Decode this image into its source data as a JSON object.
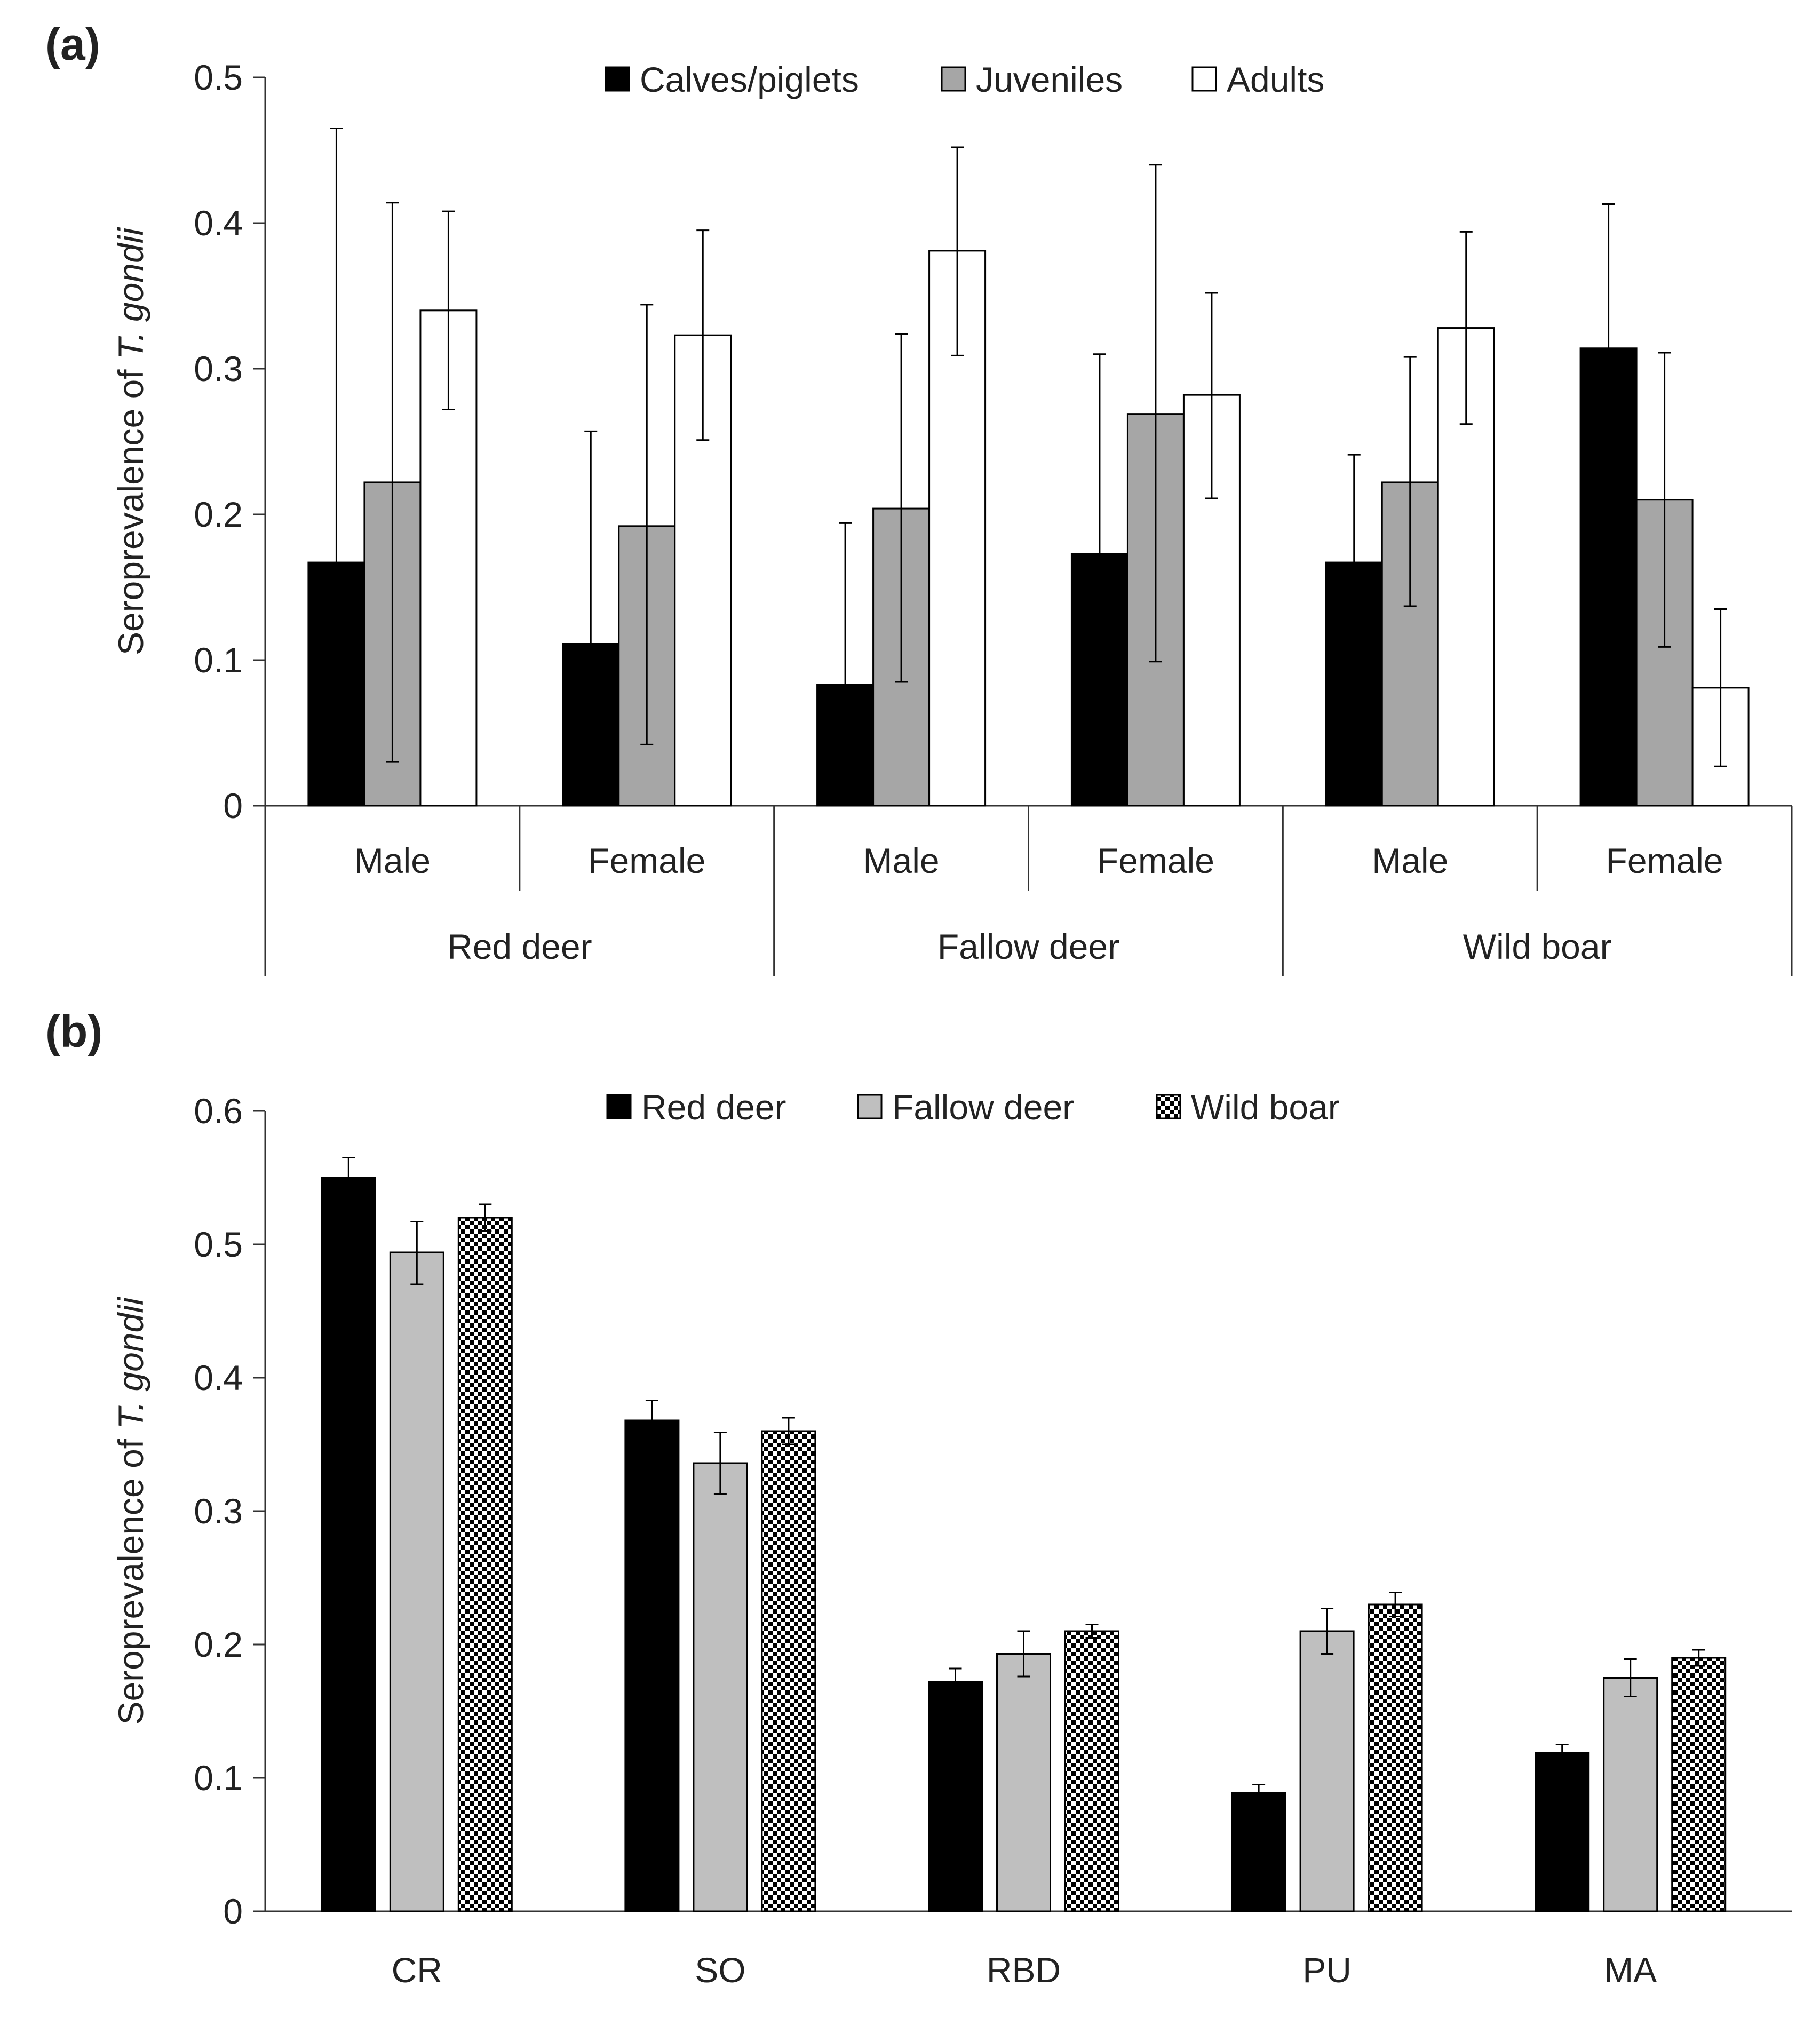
{
  "chart_data": [
    {
      "panel_label": "(a)",
      "type": "bar",
      "ylabel_prefix": "Seroprevalence of ",
      "ylabel_italic": "T. gondii",
      "ylim": [
        0,
        0.5
      ],
      "yticks": [
        "0",
        "0.1",
        "0.2",
        "0.3",
        "0.4",
        "0.5"
      ],
      "grid": false,
      "legend_position": "top",
      "groups": [
        {
          "label": "Red deer",
          "subgroups": [
            "Male",
            "Female"
          ]
        },
        {
          "label": "Fallow deer",
          "subgroups": [
            "Male",
            "Female"
          ]
        },
        {
          "label": "Wild boar",
          "subgroups": [
            "Male",
            "Female"
          ]
        }
      ],
      "series": [
        {
          "name": "Calves/piglets",
          "color": "#000000",
          "pattern": "solid",
          "values": [
            0.167,
            0.111,
            0.083,
            0.173,
            0.167,
            0.314
          ],
          "err_low": [
            0.0,
            0.0,
            0.0,
            0.035,
            0.093,
            0.216
          ],
          "err_high": [
            0.465,
            0.257,
            0.194,
            0.31,
            0.241,
            0.413
          ]
        },
        {
          "name": "Juveniles",
          "color": "#a6a6a6",
          "pattern": "solid",
          "values": [
            0.222,
            0.192,
            0.204,
            0.269,
            0.222,
            0.21
          ],
          "err_low": [
            0.03,
            0.042,
            0.085,
            0.099,
            0.137,
            0.109
          ],
          "err_high": [
            0.414,
            0.344,
            0.324,
            0.44,
            0.308,
            0.311
          ]
        },
        {
          "name": "Adults",
          "color": "#ffffff",
          "pattern": "solid",
          "values": [
            0.34,
            0.323,
            0.381,
            0.282,
            0.328,
            0.081
          ],
          "err_low": [
            0.272,
            0.251,
            0.309,
            0.211,
            0.262,
            0.027
          ],
          "err_high": [
            0.408,
            0.395,
            0.452,
            0.352,
            0.394,
            0.135
          ]
        }
      ]
    },
    {
      "panel_label": "(b)",
      "type": "bar",
      "ylabel_prefix": "Seroprevalence of ",
      "ylabel_italic": "T. gondii",
      "ylim": [
        0,
        0.6
      ],
      "yticks": [
        "0",
        "0.1",
        "0.2",
        "0.3",
        "0.4",
        "0.5",
        "0.6"
      ],
      "grid": false,
      "legend_position": "top",
      "categories": [
        "CR",
        "SO",
        "RBD",
        "PU",
        "MA"
      ],
      "series": [
        {
          "name": "Red deer",
          "color": "#000000",
          "pattern": "solid",
          "values": [
            0.55,
            0.368,
            0.172,
            0.089,
            0.119
          ],
          "err_low": [
            0.535,
            0.353,
            0.162,
            0.083,
            0.113
          ],
          "err_high": [
            0.565,
            0.383,
            0.182,
            0.095,
            0.125
          ]
        },
        {
          "name": "Fallow deer",
          "color": "#bfbfbf",
          "pattern": "solid",
          "values": [
            0.494,
            0.336,
            0.193,
            0.21,
            0.175
          ],
          "err_low": [
            0.47,
            0.313,
            0.176,
            0.193,
            0.161
          ],
          "err_high": [
            0.517,
            0.359,
            0.21,
            0.227,
            0.189
          ]
        },
        {
          "name": "Wild boar",
          "color": "#000000",
          "pattern": "checker",
          "values": [
            0.52,
            0.36,
            0.21,
            0.23,
            0.19
          ],
          "err_low": [
            0.51,
            0.35,
            0.205,
            0.221,
            0.184
          ],
          "err_high": [
            0.53,
            0.37,
            0.215,
            0.239,
            0.196
          ]
        }
      ]
    }
  ]
}
